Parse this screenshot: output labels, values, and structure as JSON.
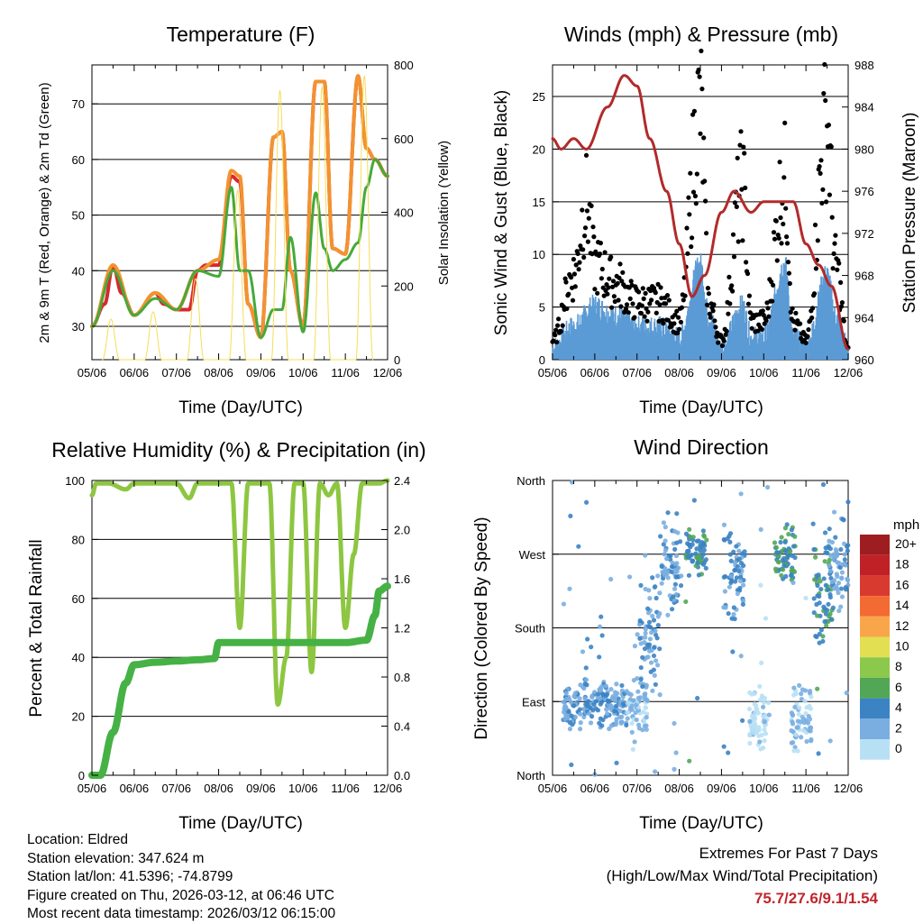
{
  "chart_data": [
    {
      "type": "line",
      "title": "Temperature (F)",
      "xlabel": "Time (Day/UTC)",
      "ylabel": "2m & 9m T (Red, Orange) & 2m Td (Green)",
      "y2label": "Solar Insolation (Yellow)",
      "ylim": [
        24,
        77
      ],
      "y2lim": [
        0,
        800
      ],
      "x_ticks": [
        "05/06",
        "06/06",
        "07/06",
        "08/06",
        "09/06",
        "10/06",
        "11/06",
        "12/06"
      ],
      "y_ticks": [
        30,
        40,
        50,
        60,
        70
      ],
      "y2_ticks": [
        0,
        200,
        400,
        600,
        800
      ],
      "series": [
        {
          "name": "2m T",
          "color": "#d7282f",
          "days": [
            0,
            0.3,
            0.5,
            0.7,
            1.0,
            1.5,
            1.7,
            2.0,
            2.3,
            2.5,
            2.7,
            3.0,
            3.3,
            3.5,
            3.7,
            4.0,
            4.3,
            4.5,
            4.7,
            5.0,
            5.3,
            5.5,
            5.7,
            6.0,
            6.3,
            6.5,
            6.7,
            7.0
          ],
          "values": [
            30,
            34,
            41,
            36,
            32,
            36,
            34,
            33,
            33,
            40,
            41,
            41,
            57,
            56,
            34,
            28,
            64,
            65,
            40,
            30,
            74,
            74,
            44,
            43,
            75,
            62,
            60,
            57
          ]
        },
        {
          "name": "9m T",
          "color": "#f39230",
          "days": [
            0,
            0.5,
            1.0,
            1.5,
            2.0,
            2.5,
            3.0,
            3.3,
            3.5,
            3.7,
            4.0,
            4.3,
            4.5,
            4.7,
            5.0,
            5.3,
            5.5,
            5.7,
            6.0,
            6.3,
            6.5,
            6.7,
            7.0
          ],
          "values": [
            30,
            41,
            32,
            36,
            33,
            40,
            42,
            58,
            57,
            34,
            28,
            64,
            65,
            40,
            30,
            74,
            74,
            44,
            43,
            75,
            62,
            60,
            57
          ]
        },
        {
          "name": "2m Td",
          "color": "#46a93a",
          "days": [
            0,
            0.5,
            1.0,
            1.5,
            2.0,
            2.5,
            3.0,
            3.3,
            3.5,
            3.7,
            4.0,
            4.3,
            4.5,
            4.7,
            5.0,
            5.3,
            5.5,
            5.7,
            6.0,
            6.3,
            6.5,
            6.7,
            7.0
          ],
          "values": [
            30,
            40,
            32,
            35,
            33,
            40,
            39,
            55,
            40,
            40,
            28,
            33,
            33,
            46,
            29,
            54,
            44,
            40,
            42,
            45,
            55,
            60,
            57
          ]
        },
        {
          "name": "Solar Insolation",
          "color": "#f5dd58",
          "axis": "y2",
          "days": [
            0.25,
            0.45,
            0.65,
            1.25,
            1.45,
            1.65,
            2.25,
            2.45,
            2.65,
            3.25,
            3.45,
            3.65,
            4.25,
            4.45,
            4.65,
            5.25,
            5.45,
            5.65,
            6.25,
            6.45,
            6.65
          ],
          "values": [
            0,
            110,
            0,
            0,
            130,
            0,
            0,
            220,
            0,
            0,
            460,
            0,
            0,
            730,
            0,
            0,
            740,
            0,
            0,
            770,
            0
          ]
        }
      ]
    },
    {
      "type": "line",
      "title": "Winds (mph) & Pressure (mb)",
      "xlabel": "Time (Day/UTC)",
      "ylabel": "Sonic Wind & Gust (Blue, Black)",
      "y2label": "Station Pressure (Maroon)",
      "ylim": [
        0,
        28
      ],
      "y2lim": [
        960,
        988
      ],
      "x_ticks": [
        "05/06",
        "06/06",
        "07/06",
        "08/06",
        "09/06",
        "10/06",
        "11/06",
        "12/06"
      ],
      "y_ticks": [
        0,
        5,
        10,
        15,
        20,
        25
      ],
      "y2_ticks": [
        960,
        964,
        968,
        972,
        976,
        980,
        984,
        988
      ],
      "series": [
        {
          "name": "Sonic Wind",
          "color": "#5b9bd5",
          "days": [
            0,
            0.5,
            1.0,
            1.5,
            2.0,
            2.5,
            3.0,
            3.5,
            3.7,
            4.0,
            4.5,
            4.7,
            5.0,
            5.5,
            5.7,
            6.0,
            6.5,
            6.7,
            7.0
          ],
          "values": [
            1,
            3,
            5,
            4,
            3,
            3,
            2,
            9,
            4,
            1,
            5,
            2,
            2,
            9,
            2,
            1,
            8,
            4,
            1
          ]
        },
        {
          "name": "Gust",
          "color": "#000000",
          "days": [
            0,
            0.5,
            0.8,
            1.0,
            1.5,
            2.0,
            2.5,
            3.0,
            3.5,
            3.7,
            4.0,
            4.5,
            4.7,
            5.0,
            5.5,
            5.7,
            6.0,
            6.5,
            6.7,
            7.0
          ],
          "values": [
            2,
            9,
            16.5,
            10,
            8,
            6,
            6,
            4,
            26.5,
            6,
            2,
            18.5,
            4,
            4,
            19,
            4,
            2,
            25,
            10,
            1
          ]
        },
        {
          "name": "Station Pressure",
          "color": "#b22a2a",
          "axis": "y2",
          "days": [
            0,
            0.2,
            0.5,
            0.8,
            1.3,
            1.7,
            2.0,
            2.3,
            2.7,
            3.0,
            3.3,
            3.6,
            4.0,
            4.3,
            4.7,
            5.0,
            5.3,
            5.7,
            6.0,
            6.3,
            6.6,
            7.0
          ],
          "values": [
            981,
            980,
            981,
            980,
            984,
            987,
            986,
            981,
            976,
            971,
            966,
            968,
            974,
            976,
            974,
            975,
            975,
            975,
            971,
            969,
            967,
            961
          ]
        }
      ]
    },
    {
      "type": "line",
      "title": "Relative Humidity (%) & Precipitation (in)",
      "xlabel": "Time (Day/UTC)",
      "ylabel": "Percent & Total Rainfall",
      "ylim": [
        0,
        100
      ],
      "y2lim": [
        0,
        2.4
      ],
      "x_ticks": [
        "05/06",
        "06/06",
        "07/06",
        "08/06",
        "09/06",
        "10/06",
        "11/06",
        "12/06"
      ],
      "y_ticks": [
        0,
        20,
        40,
        60,
        80,
        100
      ],
      "y2_ticks": [
        "0.0",
        "0.4",
        "0.8",
        "1.2",
        "1.6",
        "2.0",
        "2.4"
      ],
      "series": [
        {
          "name": "Relative Humidity",
          "color": "#8dc641",
          "days": [
            0,
            0.1,
            0.4,
            0.8,
            1.0,
            1.5,
            2.0,
            2.3,
            2.5,
            2.7,
            3.0,
            3.3,
            3.5,
            3.7,
            4.0,
            4.2,
            4.4,
            4.6,
            4.8,
            5.0,
            5.2,
            5.4,
            5.6,
            5.8,
            6.0,
            6.2,
            6.4,
            6.6,
            6.8,
            7.0
          ],
          "values": [
            95,
            99,
            99,
            97,
            99,
            99,
            99,
            94,
            99,
            99,
            99,
            99,
            50,
            99,
            99,
            99,
            24,
            40,
            99,
            99,
            35,
            99,
            95,
            99,
            50,
            75,
            99,
            99,
            99,
            100
          ]
        },
        {
          "name": "Total Rainfall",
          "color": "#46b145",
          "axis": "y2",
          "days": [
            0,
            0.2,
            0.5,
            0.8,
            1.0,
            1.5,
            2.0,
            2.5,
            2.9,
            3.0,
            4.0,
            5.0,
            6.0,
            6.5,
            6.7,
            6.8,
            7.0
          ],
          "values": [
            0,
            0,
            0.35,
            0.75,
            0.9,
            0.92,
            0.93,
            0.94,
            0.95,
            1.08,
            1.08,
            1.08,
            1.08,
            1.1,
            1.3,
            1.5,
            1.54
          ]
        }
      ]
    },
    {
      "type": "scatter",
      "title": "Wind Direction",
      "xlabel": "Time (Day/UTC)",
      "ylabel": "Direction (Colored By Speed)",
      "x_ticks": [
        "05/06",
        "06/06",
        "07/06",
        "08/06",
        "09/06",
        "10/06",
        "11/06",
        "12/06"
      ],
      "y_ticks": [
        "North",
        "East",
        "South",
        "West",
        "North"
      ],
      "ylim": [
        0,
        360
      ],
      "legend_title": "mph",
      "legend_labels": [
        "20+",
        "18",
        "16",
        "14",
        "12",
        "10",
        "8",
        "6",
        "4",
        "2",
        "0"
      ],
      "legend_colors": [
        "#9e1d20",
        "#bf2127",
        "#d93a30",
        "#f36a32",
        "#f9a64a",
        "#e2df53",
        "#8cc84b",
        "#52a756",
        "#3b83c3",
        "#7aaee0",
        "#b8e0f5"
      ],
      "clusters": [
        {
          "day": 0.5,
          "dir": 85,
          "spread": 20,
          "speed": 3
        },
        {
          "day": 1.0,
          "dir": 90,
          "spread": 20,
          "speed": 4
        },
        {
          "day": 1.5,
          "dir": 85,
          "spread": 18,
          "speed": 3
        },
        {
          "day": 2.0,
          "dir": 85,
          "spread": 25,
          "speed": 2
        },
        {
          "day": 2.3,
          "dir": 180,
          "spread": 60,
          "speed": 3
        },
        {
          "day": 2.8,
          "dir": 250,
          "spread": 40,
          "speed": 3
        },
        {
          "day": 3.4,
          "dir": 270,
          "spread": 20,
          "speed": 5
        },
        {
          "day": 4.3,
          "dir": 250,
          "spread": 40,
          "speed": 4
        },
        {
          "day": 4.9,
          "dir": 70,
          "spread": 30,
          "speed": 1
        },
        {
          "day": 5.5,
          "dir": 270,
          "spread": 25,
          "speed": 5
        },
        {
          "day": 5.9,
          "dir": 70,
          "spread": 30,
          "speed": 2
        },
        {
          "day": 6.4,
          "dir": 230,
          "spread": 50,
          "speed": 5
        },
        {
          "day": 6.8,
          "dir": 260,
          "spread": 40,
          "speed": 3
        }
      ]
    }
  ],
  "info": {
    "location": "Location: Eldred",
    "elevation": "Station elevation: 347.624 m",
    "latlon": "Station lat/lon: 41.5396; -74.8799",
    "created": "Figure created on Thu, 2026-03-12, at 06:46 UTC",
    "recent": "Most recent data timestamp: 2026/03/12 06:15:00"
  },
  "extremes": {
    "title": "Extremes For Past 7 Days",
    "subtitle": "(High/Low/Max Wind/Total Precipitation)",
    "values": "75.7/27.6/9.1/1.54"
  }
}
